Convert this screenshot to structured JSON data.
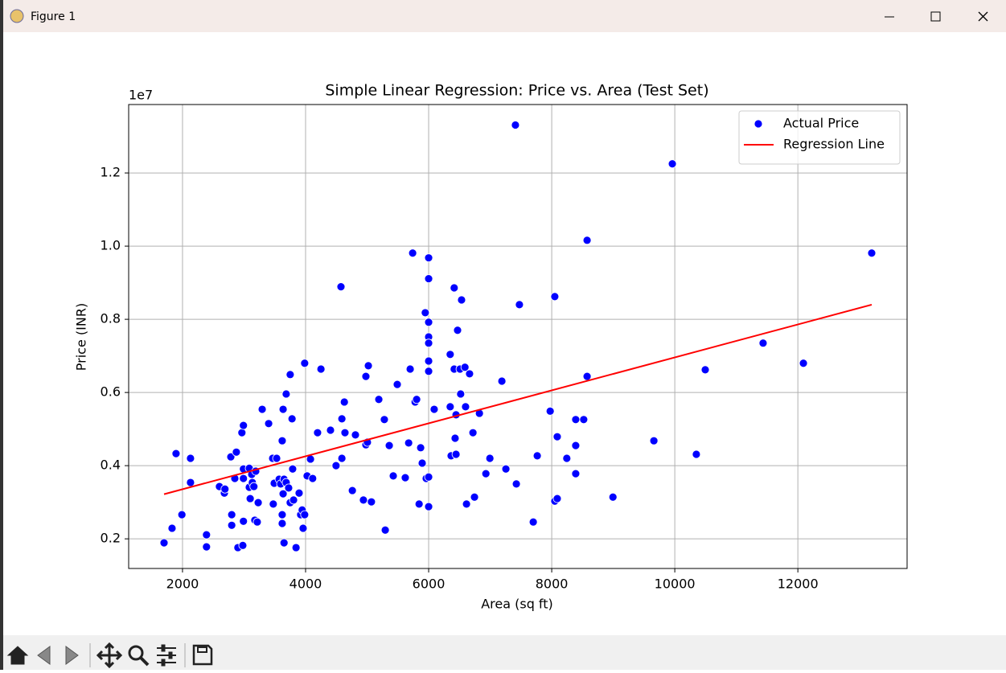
{
  "window": {
    "title": "Figure 1"
  },
  "chart_data": {
    "type": "scatter",
    "title": "Simple Linear Regression: Price vs. Area (Test Set)",
    "x_label": "Area (sq ft)",
    "y_label": "Price (INR)",
    "y_offset_label": "1e7",
    "xlim": [
      1125,
      13775
    ],
    "ylim": [
      0.119,
      1.387
    ],
    "xticks": [
      2000,
      4000,
      6000,
      8000,
      10000,
      12000
    ],
    "yticks": [
      0.2,
      0.4,
      0.6,
      0.8,
      {
        "value": 1,
        "label": "1.0"
      },
      1.2
    ],
    "grid": true,
    "legend": "upper right",
    "series": [
      {
        "name": "Actual Price",
        "type": "scatter",
        "color": "#0000ff",
        "x": [
          1700,
          1830,
          1895,
          1990,
          2130,
          2130,
          2390,
          2390,
          2600,
          2680,
          2690,
          2785,
          2800,
          2800,
          2850,
          2875,
          2900,
          2980,
          2965,
          2990,
          2990,
          2990,
          2990,
          3085,
          3085,
          3100,
          3125,
          3135,
          3160,
          3175,
          3190,
          3215,
          3230,
          3295,
          3400,
          3465,
          3490,
          3475,
          3530,
          3570,
          3595,
          3620,
          3620,
          3620,
          3635,
          3635,
          3650,
          3650,
          3685,
          3685,
          3725,
          3750,
          3750,
          3780,
          3790,
          3805,
          3845,
          3895,
          3920,
          3945,
          3960,
          3985,
          3985,
          4025,
          4080,
          4115,
          4195,
          4250,
          4405,
          4495,
          4575,
          4590,
          4590,
          4630,
          4640,
          4760,
          4810,
          4940,
          4980,
          4980,
          5005,
          5020,
          5070,
          5190,
          5280,
          5295,
          5360,
          5425,
          5490,
          5620,
          5675,
          5700,
          5740,
          5780,
          5805,
          5845,
          5870,
          5895,
          5945,
          5960,
          6000,
          6000,
          6000,
          6000,
          6000,
          6000,
          6000,
          6000,
          6000,
          6090,
          6350,
          6350,
          6365,
          6415,
          6415,
          6430,
          6445,
          6445,
          6470,
          6510,
          6520,
          6535,
          6590,
          6600,
          6615,
          6665,
          6720,
          6745,
          6825,
          6930,
          6995,
          7190,
          7255,
          7410,
          7425,
          7475,
          7700,
          7765,
          7975,
          8050,
          8050,
          8090,
          8090,
          8245,
          8390,
          8390,
          8390,
          8520,
          8575,
          8575,
          8995,
          9660,
          9960,
          10350,
          10495,
          11435,
          12090,
          13200
        ],
        "values": [
          0.189,
          0.229,
          0.433,
          0.266,
          0.354,
          0.42,
          0.211,
          0.178,
          0.343,
          0.325,
          0.336,
          0.424,
          0.266,
          0.237,
          0.365,
          0.437,
          0.176,
          0.182,
          0.49,
          0.51,
          0.391,
          0.365,
          0.248,
          0.393,
          0.341,
          0.31,
          0.376,
          0.354,
          0.343,
          0.251,
          0.385,
          0.246,
          0.299,
          0.554,
          0.515,
          0.42,
          0.352,
          0.295,
          0.42,
          0.363,
          0.35,
          0.266,
          0.242,
          0.468,
          0.554,
          0.323,
          0.189,
          0.363,
          0.596,
          0.354,
          0.339,
          0.649,
          0.299,
          0.528,
          0.391,
          0.306,
          0.176,
          0.325,
          0.266,
          0.279,
          0.229,
          0.68,
          0.266,
          0.372,
          0.418,
          0.365,
          0.49,
          0.664,
          0.497,
          0.4,
          0.889,
          0.528,
          0.42,
          0.574,
          0.49,
          0.332,
          0.484,
          0.306,
          0.644,
          0.457,
          0.464,
          0.673,
          0.301,
          0.581,
          0.526,
          0.224,
          0.455,
          0.372,
          0.622,
          0.367,
          0.462,
          0.664,
          0.981,
          0.574,
          0.581,
          0.295,
          0.449,
          0.407,
          0.818,
          0.365,
          0.968,
          0.911,
          0.792,
          0.752,
          0.735,
          0.686,
          0.658,
          0.369,
          0.288,
          0.554,
          0.704,
          0.561,
          0.427,
          0.886,
          0.664,
          0.475,
          0.539,
          0.431,
          0.77,
          0.664,
          0.596,
          0.853,
          0.669,
          0.561,
          0.295,
          0.651,
          0.49,
          0.314,
          0.543,
          0.378,
          0.42,
          0.631,
          0.391,
          1.331,
          0.35,
          0.84,
          0.246,
          0.427,
          0.549,
          0.862,
          0.303,
          0.31,
          0.479,
          0.42,
          0.378,
          0.455,
          0.526,
          0.526,
          1.016,
          0.644,
          0.314,
          0.468,
          1.225,
          0.431,
          0.662,
          0.735,
          0.68,
          0.981
        ]
      },
      {
        "name": "Regression Line",
        "type": "line",
        "color": "#ff0000",
        "x": [
          1700,
          13200
        ],
        "values": [
          0.322,
          0.84
        ]
      }
    ]
  }
}
